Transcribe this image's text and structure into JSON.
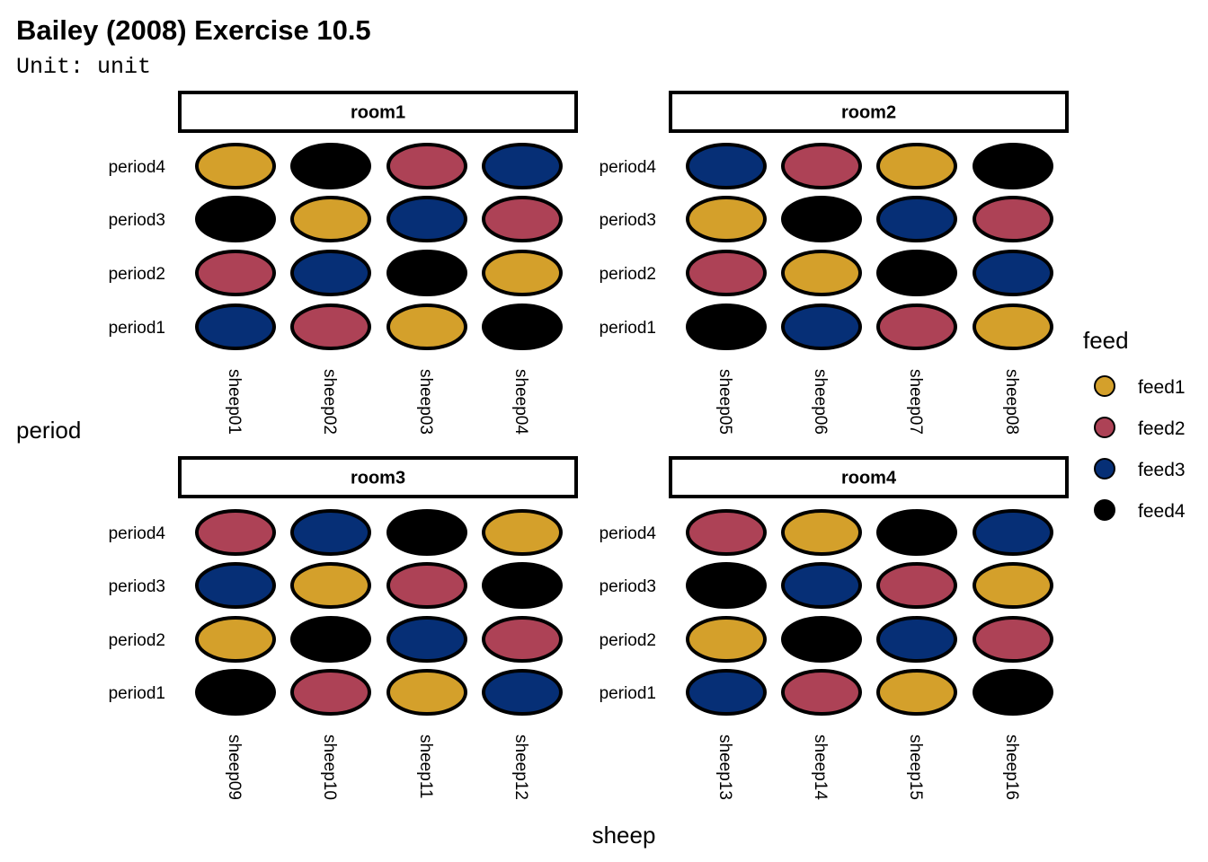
{
  "chart_data": {
    "type": "tile",
    "title": "Bailey (2008) Exercise 10.5",
    "subtitle": "Unit: unit",
    "xlabel": "sheep",
    "ylabel": "period",
    "rows": [
      "period1",
      "period2",
      "period3",
      "period4"
    ],
    "legend": {
      "title": "feed",
      "position": "right",
      "entries": [
        {
          "name": "feed1",
          "color": "#D4A02B"
        },
        {
          "name": "feed2",
          "color": "#AD4256"
        },
        {
          "name": "feed3",
          "color": "#062F76"
        },
        {
          "name": "feed4",
          "color": "#000000"
        }
      ]
    },
    "panels": [
      {
        "label": "room1",
        "sheep": [
          "sheep01",
          "sheep02",
          "sheep03",
          "sheep04"
        ],
        "grid": {
          "period1": [
            "feed3",
            "feed2",
            "feed1",
            "feed4"
          ],
          "period2": [
            "feed2",
            "feed3",
            "feed4",
            "feed1"
          ],
          "period3": [
            "feed4",
            "feed1",
            "feed3",
            "feed2"
          ],
          "period4": [
            "feed1",
            "feed4",
            "feed2",
            "feed3"
          ]
        }
      },
      {
        "label": "room2",
        "sheep": [
          "sheep05",
          "sheep06",
          "sheep07",
          "sheep08"
        ],
        "grid": {
          "period1": [
            "feed4",
            "feed3",
            "feed2",
            "feed1"
          ],
          "period2": [
            "feed2",
            "feed1",
            "feed4",
            "feed3"
          ],
          "period3": [
            "feed1",
            "feed4",
            "feed3",
            "feed2"
          ],
          "period4": [
            "feed3",
            "feed2",
            "feed1",
            "feed4"
          ]
        }
      },
      {
        "label": "room3",
        "sheep": [
          "sheep09",
          "sheep10",
          "sheep11",
          "sheep12"
        ],
        "grid": {
          "period1": [
            "feed4",
            "feed2",
            "feed1",
            "feed3"
          ],
          "period2": [
            "feed1",
            "feed4",
            "feed3",
            "feed2"
          ],
          "period3": [
            "feed3",
            "feed1",
            "feed2",
            "feed4"
          ],
          "period4": [
            "feed2",
            "feed3",
            "feed4",
            "feed1"
          ]
        }
      },
      {
        "label": "room4",
        "sheep": [
          "sheep13",
          "sheep14",
          "sheep15",
          "sheep16"
        ],
        "grid": {
          "period1": [
            "feed3",
            "feed2",
            "feed1",
            "feed4"
          ],
          "period2": [
            "feed1",
            "feed4",
            "feed3",
            "feed2"
          ],
          "period3": [
            "feed4",
            "feed3",
            "feed2",
            "feed1"
          ],
          "period4": [
            "feed2",
            "feed1",
            "feed4",
            "feed3"
          ]
        }
      }
    ]
  }
}
